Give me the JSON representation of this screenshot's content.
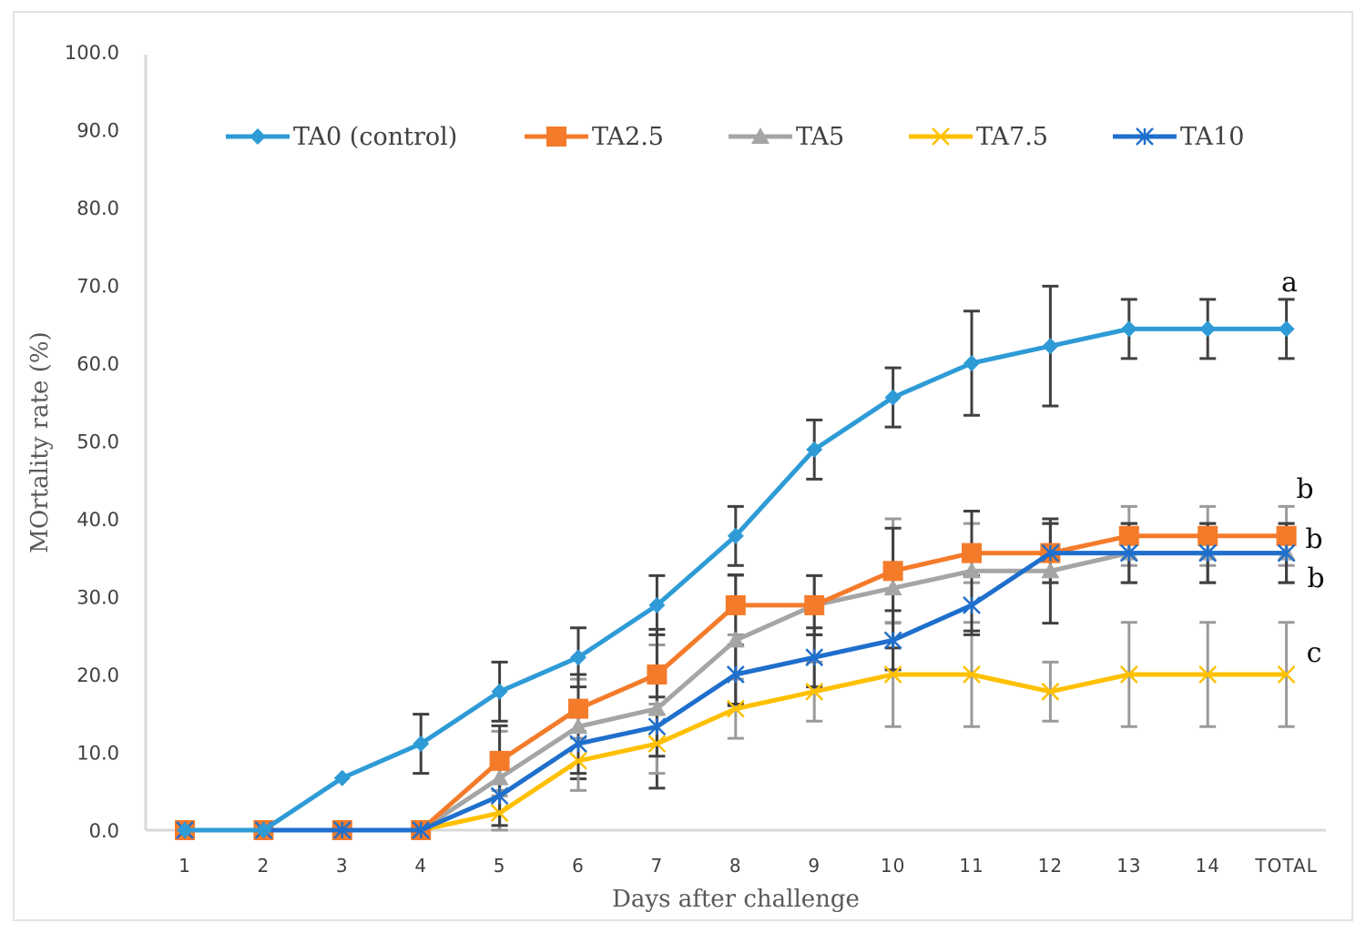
{
  "chart_data": {
    "type": "line",
    "title": "",
    "xlabel": "Days after challenge",
    "ylabel": "MOrtality rate (%)",
    "categories": [
      "1",
      "2",
      "3",
      "4",
      "5",
      "6",
      "7",
      "8",
      "9",
      "10",
      "11",
      "12",
      "13",
      "14",
      "TOTAL"
    ],
    "ylim": [
      0,
      100
    ],
    "yticks": [
      "0.0",
      "10.0",
      "20.0",
      "30.0",
      "40.0",
      "50.0",
      "60.0",
      "70.0",
      "80.0",
      "90.0",
      "100.0"
    ],
    "grid": false,
    "legend_position": "top",
    "series": [
      {
        "name": "TA0 (control)",
        "color": "#2E9BD6",
        "marker": "diamond",
        "values": [
          0,
          0,
          6.7,
          11.1,
          17.8,
          22.2,
          28.9,
          37.8,
          48.9,
          55.6,
          60.0,
          62.2,
          64.4,
          64.4,
          64.4
        ],
        "errors": [
          0,
          0,
          0,
          3.8,
          3.8,
          3.8,
          3.8,
          3.8,
          3.8,
          3.8,
          6.7,
          7.7,
          3.8,
          3.8,
          3.8
        ]
      },
      {
        "name": "TA2.5",
        "color": "#F47B2A",
        "marker": "square",
        "values": [
          0,
          0,
          0,
          0,
          8.9,
          15.6,
          20.0,
          28.9,
          28.9,
          33.3,
          35.6,
          35.6,
          37.8,
          37.8,
          37.8
        ],
        "errors": [
          0,
          0,
          0,
          0,
          3.8,
          3.8,
          3.8,
          3.8,
          3.8,
          6.7,
          3.8,
          3.8,
          3.8,
          3.8,
          3.8
        ]
      },
      {
        "name": "TA5",
        "color": "#A5A5A5",
        "marker": "triangle",
        "values": [
          0,
          0,
          0,
          0,
          6.7,
          13.3,
          15.6,
          24.4,
          28.9,
          31.1,
          33.3,
          33.3,
          35.6,
          35.6,
          35.6
        ],
        "errors": [
          0,
          0,
          0,
          0,
          6.7,
          6.7,
          10.2,
          8.4,
          3.8,
          7.7,
          7.7,
          6.7,
          3.8,
          3.8,
          3.8
        ]
      },
      {
        "name": "TA7.5",
        "color": "#FFC000",
        "marker": "x",
        "values": [
          0,
          0,
          0,
          0,
          2.2,
          8.9,
          11.1,
          15.6,
          17.8,
          20.0,
          20.0,
          17.8,
          20.0,
          20.0,
          20.0
        ],
        "errors": [
          0,
          0,
          0,
          0,
          2.2,
          3.8,
          3.8,
          3.8,
          3.8,
          6.7,
          6.7,
          3.8,
          6.7,
          6.7,
          6.7
        ]
      },
      {
        "name": "TA10",
        "color": "#1F6FCC",
        "marker": "star",
        "values": [
          0,
          0,
          0,
          0,
          4.4,
          11.1,
          13.3,
          20.0,
          22.2,
          24.4,
          28.9,
          35.6,
          35.6,
          35.6,
          35.6
        ],
        "errors": [
          0,
          0,
          0,
          0,
          3.8,
          3.8,
          3.8,
          3.8,
          3.8,
          3.8,
          3.8,
          3.8,
          3.8,
          3.8,
          3.8
        ]
      }
    ],
    "annotations": [
      {
        "text": "a",
        "series": "TA0 (control)"
      },
      {
        "text": "b",
        "series": "TA2.5"
      },
      {
        "text": "b",
        "series": "TA2.5"
      },
      {
        "text": "b",
        "series": "TA10"
      },
      {
        "text": "c",
        "series": "TA7.5"
      }
    ]
  }
}
